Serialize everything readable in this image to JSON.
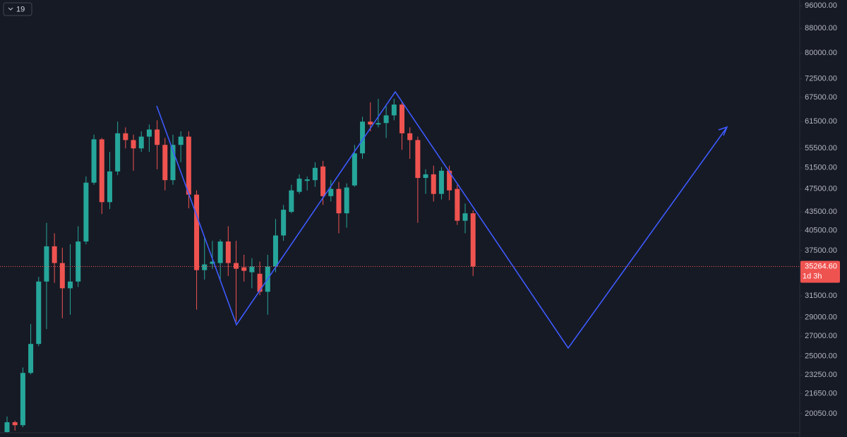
{
  "interval_badge": "19",
  "chart_data": {
    "type": "candlestick",
    "log_scale": true,
    "up_color": "#26a69a",
    "down_color": "#ef5350",
    "ylim": [
      18630,
      98100
    ],
    "yticks": [
      {
        "value": 96000,
        "label": "96000.00"
      },
      {
        "value": 88000,
        "label": "88000.00"
      },
      {
        "value": 80000,
        "label": "80000.00"
      },
      {
        "value": 72500,
        "label": "72500.00"
      },
      {
        "value": 67500,
        "label": "67500.00"
      },
      {
        "value": 61500,
        "label": "61500.00"
      },
      {
        "value": 55500,
        "label": "55500.00"
      },
      {
        "value": 51500,
        "label": "51500.00"
      },
      {
        "value": 47500,
        "label": "47500.00"
      },
      {
        "value": 43500,
        "label": "43500.00"
      },
      {
        "value": 40500,
        "label": "40500.00"
      },
      {
        "value": 37500,
        "label": "37500.00"
      },
      {
        "value": 31500,
        "label": "31500.00"
      },
      {
        "value": 29000,
        "label": "29000.00"
      },
      {
        "value": 27000,
        "label": "27000.00"
      },
      {
        "value": 25000,
        "label": "25000.00"
      },
      {
        "value": 23250,
        "label": "23250.00"
      },
      {
        "value": 21650,
        "label": "21650.00"
      },
      {
        "value": 20050,
        "label": "20050.00"
      }
    ],
    "last_price": {
      "value": 35264.6,
      "label": "35264.60"
    },
    "countdown": "1d 3h",
    "open": [
      18680,
      19400,
      19180,
      23440,
      26200,
      33290,
      38110,
      35740,
      32440,
      33290,
      38820,
      48660,
      57460,
      45150,
      50800,
      58810,
      57300,
      55500,
      58060,
      59670,
      56250,
      49130,
      56250,
      58060,
      46470,
      34780,
      35640,
      35740,
      38820,
      35740,
      35160,
      34500,
      34300,
      32010,
      35260,
      39730,
      43500,
      46980,
      48990,
      49130,
      51780,
      46210,
      47500,
      43260,
      48140,
      54450,
      61500,
      60830,
      61170,
      63000,
      65670,
      58810,
      57300,
      49550,
      50240,
      46600,
      50940,
      47500,
      42040,
      43260
    ],
    "high": [
      19830,
      19510,
      23940,
      28290,
      33890,
      41710,
      40060,
      37910,
      38410,
      41160,
      49830,
      58510,
      57760,
      54750,
      61500,
      60170,
      58510,
      59260,
      60830,
      61830,
      57760,
      58510,
      59260,
      59260,
      47240,
      39430,
      38920,
      39130,
      41160,
      38920,
      36890,
      36410,
      35930,
      36890,
      42320,
      44680,
      48270,
      50240,
      49830,
      52620,
      52900,
      49130,
      48790,
      48530,
      56250,
      62670,
      66220,
      67130,
      65300,
      67130,
      66220,
      60170,
      58060,
      51220,
      51920,
      51640,
      51920,
      48270,
      44910,
      43740
    ],
    "low": [
      18630,
      18780,
      19030,
      23310,
      25980,
      27740,
      33120,
      28920,
      29310,
      32610,
      38410,
      48270,
      43150,
      43970,
      50100,
      55500,
      50940,
      54750,
      54750,
      51220,
      47240,
      48270,
      52620,
      44090,
      29880,
      33540,
      34970,
      33540,
      34020,
      28530,
      33290,
      32440,
      31590,
      29310,
      34500,
      38920,
      43260,
      46600,
      47240,
      47890,
      44680,
      45270,
      40060,
      40940,
      47890,
      53310,
      59260,
      60170,
      57760,
      61830,
      55200,
      53310,
      41710,
      46600,
      45270,
      45620,
      45490,
      41380,
      40060,
      34020
    ],
    "close": [
      19400,
      19180,
      23440,
      26200,
      33290,
      38110,
      35740,
      32440,
      33290,
      38820,
      48660,
      57460,
      45150,
      50800,
      58810,
      57300,
      55500,
      58060,
      59670,
      56250,
      49130,
      56250,
      58060,
      46470,
      34780,
      35550,
      35930,
      38820,
      35740,
      34970,
      34690,
      35260,
      32010,
      35260,
      39730,
      43850,
      47240,
      49410,
      49270,
      51500,
      46210,
      47500,
      43260,
      47760,
      54450,
      61500,
      60830,
      61170,
      63000,
      65670,
      58810,
      57300,
      49550,
      50240,
      46600,
      50940,
      47240,
      42040,
      43260,
      35264.6
    ]
  }
}
